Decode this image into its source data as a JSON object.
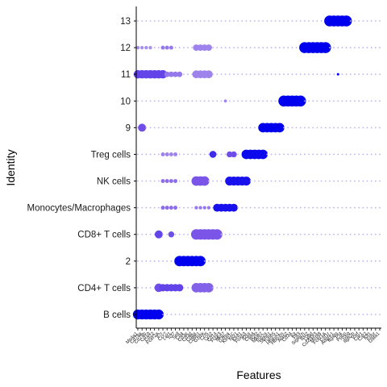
{
  "chart_data": {
    "type": "dotplot",
    "xlabel": "Features",
    "ylabel": "Identity",
    "identities": [
      "B cells",
      "CD4+ T cells",
      "2",
      "CD8+ T cells",
      "Monocytes/Macrophages",
      "NK cells",
      "Treg cells",
      "9",
      "10",
      "11",
      "12",
      "13"
    ],
    "features": [
      "Ms4a1",
      "Cd79a",
      "Cd79b",
      "Cd19",
      "Cd22",
      "Fcer2a",
      "Il7r",
      "Ccr7",
      "Lef1",
      "Tcf7",
      "Sell",
      "Cd4",
      "Cd3e",
      "Cd3d",
      "Cd8a",
      "Cd8b1",
      "Gzmk",
      "Ccl5",
      "Lyz2",
      "Cd14",
      "Fcgr3",
      "Nkg7",
      "Gzma",
      "Klrb1c",
      "Ncr1",
      "Klrd1",
      "Foxp3",
      "Il2ra",
      "Ctla4",
      "Ikzf2",
      "Mki67",
      "Top2a",
      "Stmn1",
      "Tubb5",
      "Hba-a1",
      "Hbb-bs",
      "Alas2",
      "Cd34",
      "Kit",
      "Flt3",
      "Siglech",
      "Bst2",
      "Ly6d",
      "Cd200r3",
      "Mcpt8",
      "Fcer1a",
      "Csf1r",
      "Adgre1",
      "Itgam",
      "Pf4",
      "Ppbp",
      "Gp9",
      "Itga2b",
      "Vwf",
      "Car1",
      "Car2",
      "Klf1",
      "Epor",
      "Gata1"
    ],
    "column_labels_shown": [
      "Ms4a1",
      "Cd79a",
      "Cd79b",
      "Cd19",
      "Cd22",
      "Fcer2a",
      "Il7r",
      "Ccr7",
      "Lef1",
      "Tcf7",
      "Sell",
      "Cd4",
      "Cd3e",
      "Cd3d",
      "Cd8a",
      "Cd8b1",
      "Gzmk",
      "Ccl5",
      "Lyz2",
      "Cd14",
      "Fcgr3",
      "Nkg7",
      "Gzma",
      "Klrb1c",
      "Ncr1",
      "Klrd1",
      "Foxp3",
      "Il2ra",
      "Ctla4",
      "Ikzf2",
      "Mki67",
      "Top2a",
      "Stmn1",
      "Tubb5",
      "Hba-a1",
      "Hbb-bs",
      "Alas2",
      "Cd34",
      "Kit",
      "Flt3",
      "Siglech",
      "Bst2",
      "Ly6d",
      "Cd200r3",
      "Mcpt8",
      "Fcer1a",
      "Csf1r",
      "Adgre1",
      "Itgam",
      "Pf4",
      "Ppbp",
      "Gp9",
      "Itga2b",
      "Vwf",
      "Car1",
      "Car2",
      "Klf1",
      "Epor",
      "Gata1"
    ],
    "marker_runs": [
      {
        "identity": "B cells",
        "start": 0,
        "end": 5,
        "pct": 0.9,
        "expr": 1.0
      },
      {
        "identity": "CD4+ T cells",
        "start": 6,
        "end": 10,
        "pct": 0.65,
        "expr": 0.6
      },
      {
        "identity": "2",
        "start": 10,
        "end": 15,
        "pct": 0.95,
        "expr": 1.0
      },
      {
        "identity": "CD8+ T cells",
        "start": 14,
        "end": 19,
        "pct": 0.95,
        "expr": 0.5
      },
      {
        "identity": "Monocytes/Macrophages",
        "start": 19,
        "end": 23,
        "pct": 0.7,
        "expr": 0.9
      },
      {
        "identity": "NK cells",
        "start": 22,
        "end": 26,
        "pct": 0.8,
        "expr": 0.9
      },
      {
        "identity": "Treg cells",
        "start": 26,
        "end": 30,
        "pct": 0.85,
        "expr": 0.95
      },
      {
        "identity": "9",
        "start": 30,
        "end": 34,
        "pct": 0.85,
        "expr": 1.0
      },
      {
        "identity": "10",
        "start": 35,
        "end": 39,
        "pct": 1.0,
        "expr": 1.0
      },
      {
        "identity": "12",
        "start": 40,
        "end": 45,
        "pct": 1.0,
        "expr": 1.0
      },
      {
        "identity": "13",
        "start": 46,
        "end": 50,
        "pct": 1.0,
        "expr": 1.0
      }
    ],
    "legend": "none",
    "grid": false,
    "colors": {
      "high": "#0000ee",
      "mid": "#7b55e8",
      "low": "#bba6ee",
      "faint": "#cfc3f0"
    }
  }
}
